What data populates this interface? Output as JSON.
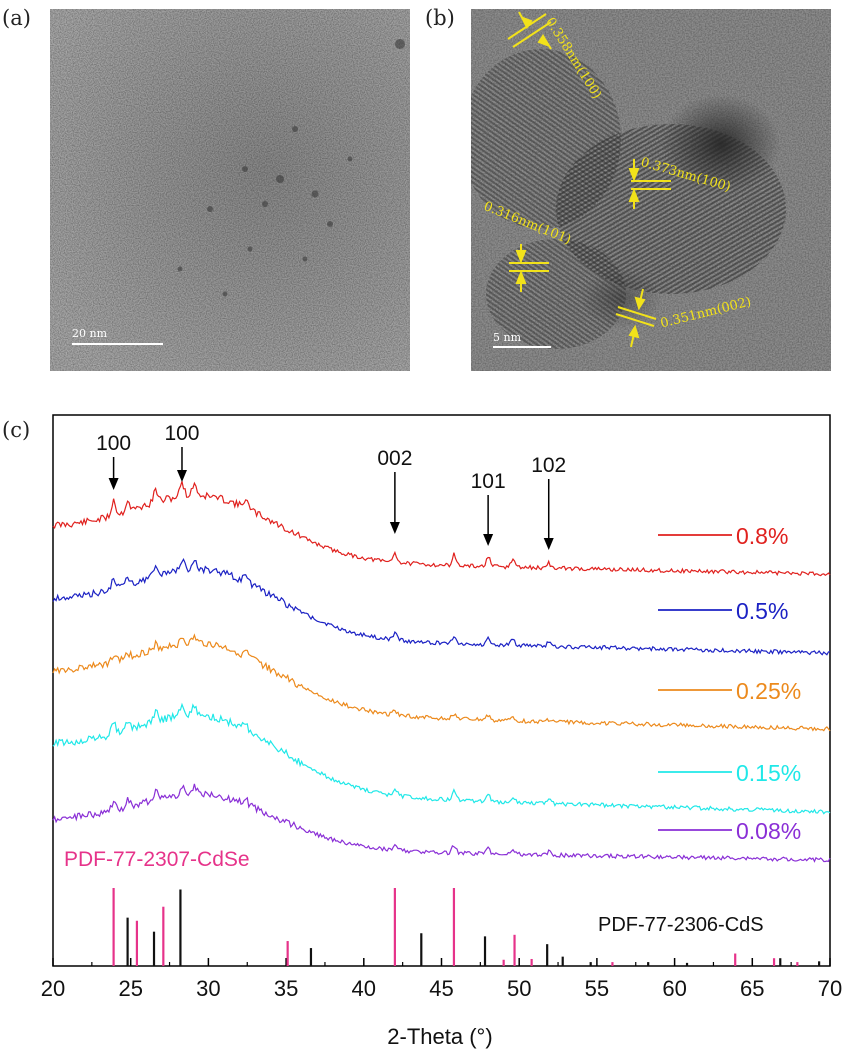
{
  "panels": {
    "a": {
      "label": "(a)",
      "scale_bar": "20 nm"
    },
    "b": {
      "label": "(b)",
      "scale_bar": "5 nm",
      "annotations": [
        "0.358nm(100)",
        "0.373nm(100)",
        "0.316nm(101)",
        "0.351nm(002)"
      ]
    },
    "c": {
      "label": "(c)"
    }
  },
  "colors": {
    "s08": "#e0211e",
    "s05": "#1c22c4",
    "s025": "#ec8a1d",
    "s015": "#20e8e8",
    "s008": "#8a2fd6",
    "cdse": "#e6338a",
    "cds": "#111111",
    "annot": "#f2e21a"
  },
  "chart_data": {
    "type": "line",
    "xlabel": "2-Theta (°)",
    "xlim": [
      20,
      70
    ],
    "xticks": [
      20,
      25,
      30,
      35,
      40,
      45,
      50,
      55,
      60,
      65,
      70
    ],
    "series": [
      {
        "name": "0.8%",
        "color": "#e0211e"
      },
      {
        "name": "0.5%",
        "color": "#1c22c4"
      },
      {
        "name": "0.25%",
        "color": "#ec8a1d"
      },
      {
        "name": "0.15%",
        "color": "#20e8e8"
      },
      {
        "name": "0.08%",
        "color": "#8a2fd6"
      }
    ],
    "peak_labels": [
      {
        "text": "100",
        "x": 23.9
      },
      {
        "text": "100",
        "x": 28.3
      },
      {
        "text": "002",
        "x": 42.0
      },
      {
        "text": "101",
        "x": 48.0
      },
      {
        "text": "102",
        "x": 51.9
      }
    ],
    "reference_cdse": {
      "name": "PDF-77-2307-CdSe",
      "peaks": [
        {
          "x": 23.9,
          "h": 1.0
        },
        {
          "x": 25.4,
          "h": 0.58
        },
        {
          "x": 27.1,
          "h": 0.76
        },
        {
          "x": 35.1,
          "h": 0.32
        },
        {
          "x": 42.0,
          "h": 1.0
        },
        {
          "x": 45.8,
          "h": 1.0
        },
        {
          "x": 49.0,
          "h": 0.08
        },
        {
          "x": 49.7,
          "h": 0.4
        },
        {
          "x": 50.8,
          "h": 0.09
        },
        {
          "x": 56.0,
          "h": 0.05
        },
        {
          "x": 63.9,
          "h": 0.16
        },
        {
          "x": 66.4,
          "h": 0.1
        },
        {
          "x": 67.9,
          "h": 0.05
        }
      ]
    },
    "reference_cds": {
      "name": "PDF-77-2306-CdS",
      "peaks": [
        {
          "x": 24.8,
          "h": 0.62
        },
        {
          "x": 26.5,
          "h": 0.44
        },
        {
          "x": 28.2,
          "h": 0.98
        },
        {
          "x": 36.6,
          "h": 0.23
        },
        {
          "x": 43.7,
          "h": 0.42
        },
        {
          "x": 47.8,
          "h": 0.38
        },
        {
          "x": 51.8,
          "h": 0.28
        },
        {
          "x": 52.8,
          "h": 0.12
        },
        {
          "x": 54.6,
          "h": 0.05
        },
        {
          "x": 58.3,
          "h": 0.05
        },
        {
          "x": 60.8,
          "h": 0.04
        },
        {
          "x": 66.8,
          "h": 0.1
        },
        {
          "x": 69.3,
          "h": 0.06
        }
      ]
    }
  }
}
